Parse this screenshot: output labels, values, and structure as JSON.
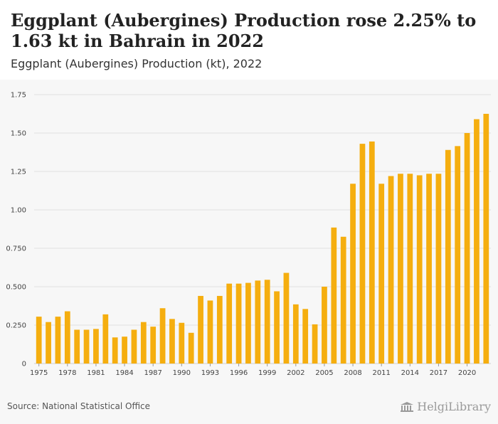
{
  "header": {
    "title": "Eggplant (Aubergines) Production rose 2.25% to 1.63 kt in Bahrain in 2022",
    "subtitle": "Eggplant (Aubergines) Production (kt), 2022"
  },
  "footer": {
    "source": "Source: National Statistical Office",
    "logo_text": "HelgiLibrary"
  },
  "colors": {
    "bar": "#f5ae0f",
    "grid": "#e2e2e2",
    "background": "#f7f7f7"
  },
  "chart_data": {
    "type": "bar",
    "categories": [
      1975,
      1976,
      1977,
      1978,
      1979,
      1980,
      1981,
      1982,
      1983,
      1984,
      1985,
      1986,
      1987,
      1988,
      1989,
      1990,
      1991,
      1992,
      1993,
      1994,
      1995,
      1996,
      1997,
      1998,
      1999,
      2000,
      2001,
      2002,
      2003,
      2004,
      2005,
      2006,
      2007,
      2008,
      2009,
      2010,
      2011,
      2012,
      2013,
      2014,
      2015,
      2016,
      2017,
      2018,
      2019,
      2020,
      2021,
      2022
    ],
    "values": [
      0.305,
      0.27,
      0.305,
      0.34,
      0.22,
      0.22,
      0.225,
      0.32,
      0.17,
      0.175,
      0.22,
      0.27,
      0.24,
      0.36,
      0.29,
      0.265,
      0.2,
      0.44,
      0.41,
      0.44,
      0.52,
      0.52,
      0.525,
      0.54,
      0.545,
      0.47,
      0.59,
      0.385,
      0.355,
      0.255,
      0.5,
      0.885,
      0.825,
      1.17,
      1.43,
      1.445,
      1.17,
      1.22,
      1.235,
      1.235,
      1.225,
      1.235,
      1.235,
      1.39,
      1.415,
      1.5,
      1.59,
      1.625
    ],
    "xtick_labels": [
      "1975",
      "1978",
      "1981",
      "1984",
      "1987",
      "1990",
      "1993",
      "1996",
      "1999",
      "2002",
      "2005",
      "2008",
      "2011",
      "2014",
      "2017",
      "2020"
    ],
    "ytick_labels": [
      "0",
      "0.250",
      "0.500",
      "0.750",
      "1.00",
      "1.25",
      "1.50",
      "1.75"
    ],
    "ylim": [
      0,
      1.75
    ],
    "grid": true,
    "legend": "none"
  }
}
